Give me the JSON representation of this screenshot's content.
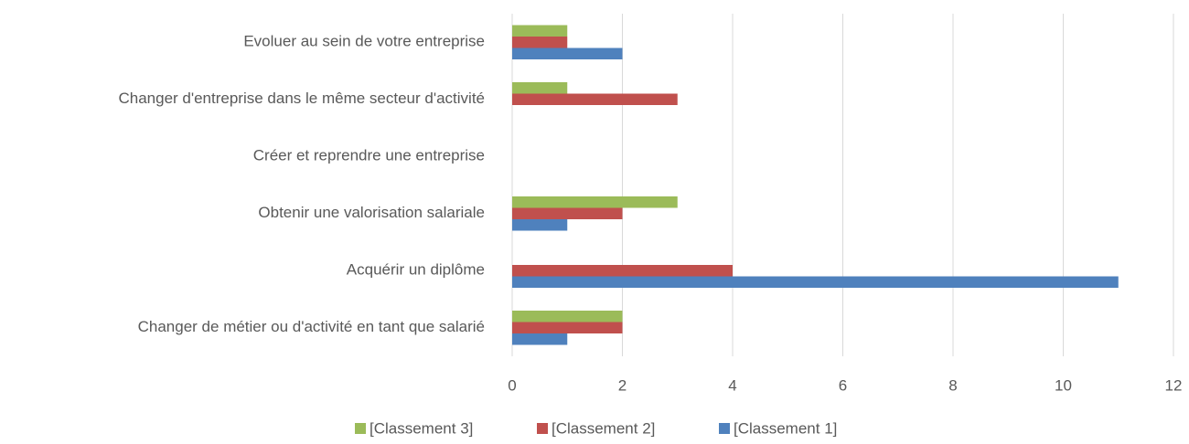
{
  "chart_data": {
    "type": "hbar",
    "categories": [
      "Changer de métier ou d'activité en tant que salarié",
      "Acquérir un diplôme",
      "Obtenir une valorisation salariale",
      "Créer et reprendre une entreprise",
      "Changer d'entreprise dans le même secteur d'activité",
      "Evoluer au sein de votre entreprise"
    ],
    "series": [
      {
        "name": "[Classement 1]",
        "color": "#4f81bd",
        "values": [
          1,
          11,
          1,
          0,
          0,
          2
        ]
      },
      {
        "name": "[Classement 2]",
        "color": "#c0504d",
        "values": [
          2,
          4,
          2,
          0,
          3,
          1
        ]
      },
      {
        "name": "[Classement 3]",
        "color": "#9bbb59",
        "values": [
          2,
          0,
          3,
          0,
          1,
          1
        ]
      }
    ],
    "xlim": [
      0,
      12
    ],
    "xticks": [
      0,
      2,
      4,
      6,
      8,
      10,
      12
    ],
    "grid": true,
    "legend": "bottom"
  }
}
